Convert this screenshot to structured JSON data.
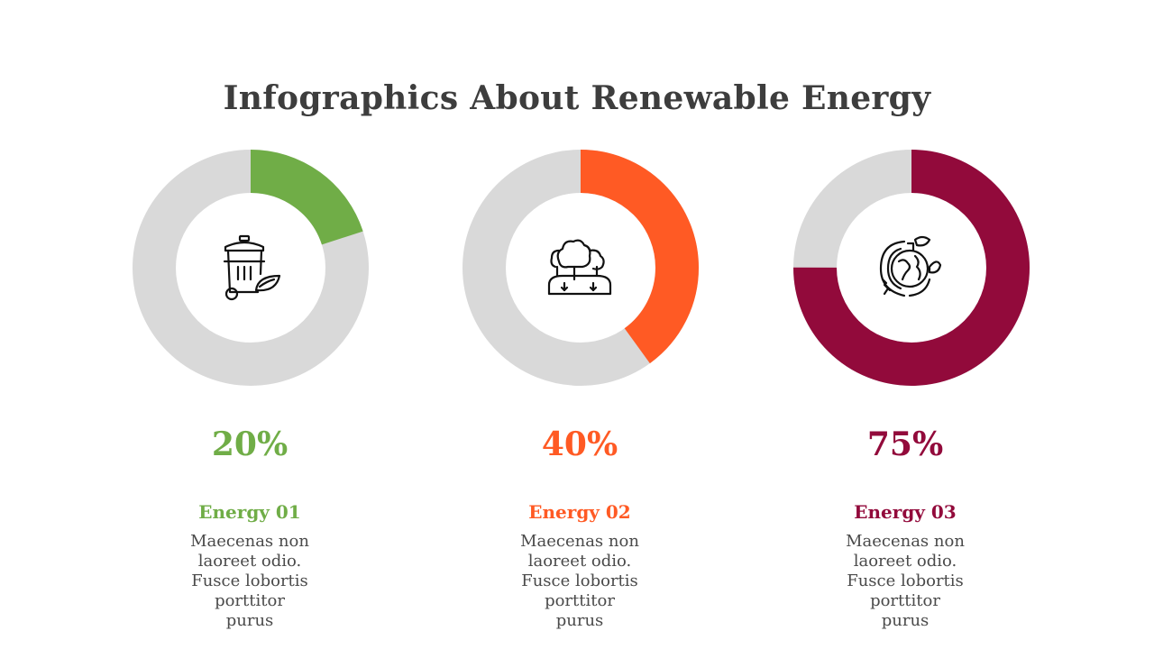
{
  "title": "Infographics About Renewable Energy",
  "colors": {
    "track": "#d9d9d9",
    "title": "#3d3d3d",
    "text": "#4a4a4a"
  },
  "chart_data": {
    "type": "pie",
    "items": [
      {
        "label": "Energy 01",
        "value": 20,
        "display": "20%",
        "color": "#70ad47",
        "icon": "recycle-bin-leaf-icon",
        "desc": [
          "Maecenas non laoreet odio.",
          "Fusce lobortis porttitor",
          "purus"
        ]
      },
      {
        "label": "Energy 02",
        "value": 40,
        "display": "40%",
        "color": "#ff5a24",
        "icon": "trees-landscape-icon",
        "desc": [
          "Maecenas non laoreet odio.",
          "Fusce lobortis porttitor",
          "purus"
        ]
      },
      {
        "label": "Energy 03",
        "value": 75,
        "display": "75%",
        "color": "#920a3b",
        "icon": "earth-plug-leaf-icon",
        "desc": [
          "Maecenas non laoreet odio.",
          "Fusce lobortis porttitor",
          "purus"
        ]
      }
    ]
  }
}
